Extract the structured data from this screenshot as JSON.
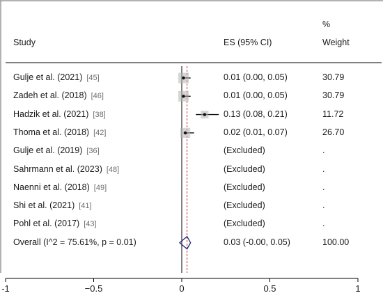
{
  "chart_data": {
    "type": "forest",
    "headers": {
      "study": "Study",
      "es": "ES (95% CI)",
      "weight_top": "%",
      "weight_bottom": "Weight"
    },
    "studies": [
      {
        "name": "Gulje et al. (2021)",
        "ref": "[45]",
        "es": 0.01,
        "lo": 0.0,
        "hi": 0.05,
        "ci_text": "0.01 (0.00, 0.05)",
        "weight": "30.79",
        "w": 30.79,
        "excluded": false
      },
      {
        "name": "Zadeh et al. (2018)",
        "ref": "[46]",
        "es": 0.01,
        "lo": 0.0,
        "hi": 0.05,
        "ci_text": "0.01 (0.00, 0.05)",
        "weight": "30.79",
        "w": 30.79,
        "excluded": false
      },
      {
        "name": "Hadzik et al. (2021)",
        "ref": "[38]",
        "es": 0.13,
        "lo": 0.08,
        "hi": 0.21,
        "ci_text": "0.13 (0.08, 0.21)",
        "weight": "11.72",
        "w": 11.72,
        "excluded": false
      },
      {
        "name": "Thoma et al. (2018)",
        "ref": "[42]",
        "es": 0.02,
        "lo": 0.01,
        "hi": 0.07,
        "ci_text": "0.02 (0.01, 0.07)",
        "weight": "26.70",
        "w": 26.7,
        "excluded": false
      },
      {
        "name": "Gulje et al. (2019)",
        "ref": "[36]",
        "ci_text": "(Excluded)",
        "weight": ".",
        "excluded": true
      },
      {
        "name": "Sahrmann et al. (2023)",
        "ref": "[48]",
        "ci_text": "(Excluded)",
        "weight": ".",
        "excluded": true
      },
      {
        "name": "Naenni et al. (2018)",
        "ref": "[49]",
        "ci_text": "(Excluded)",
        "weight": ".",
        "excluded": true
      },
      {
        "name": "Shi et al. (2021)",
        "ref": "[41]",
        "ci_text": "(Excluded)",
        "weight": ".",
        "excluded": true
      },
      {
        "name": "Pohl et al. (2017)",
        "ref": "[43]",
        "ci_text": "(Excluded)",
        "weight": ".",
        "excluded": true
      }
    ],
    "overall": {
      "label": "Overall  (I^2 = 75.61%, p = 0.01)",
      "es": 0.03,
      "lo": -0.0,
      "hi": 0.05,
      "ci_text": "0.03 (-0.00, 0.05)",
      "weight": "100.00"
    },
    "null_line": 0,
    "x_axis": {
      "range": [
        -1,
        1
      ],
      "ticks": [
        -1,
        -0.5,
        0,
        0.5,
        1
      ],
      "tick_labels": [
        "-1",
        "−0.5",
        "0",
        "0.5",
        "1"
      ]
    },
    "colors": {
      "marker": "#111111",
      "overall_diamond": "#1e2a78",
      "overall_line": "#c0303a",
      "frame": "#666666"
    }
  }
}
